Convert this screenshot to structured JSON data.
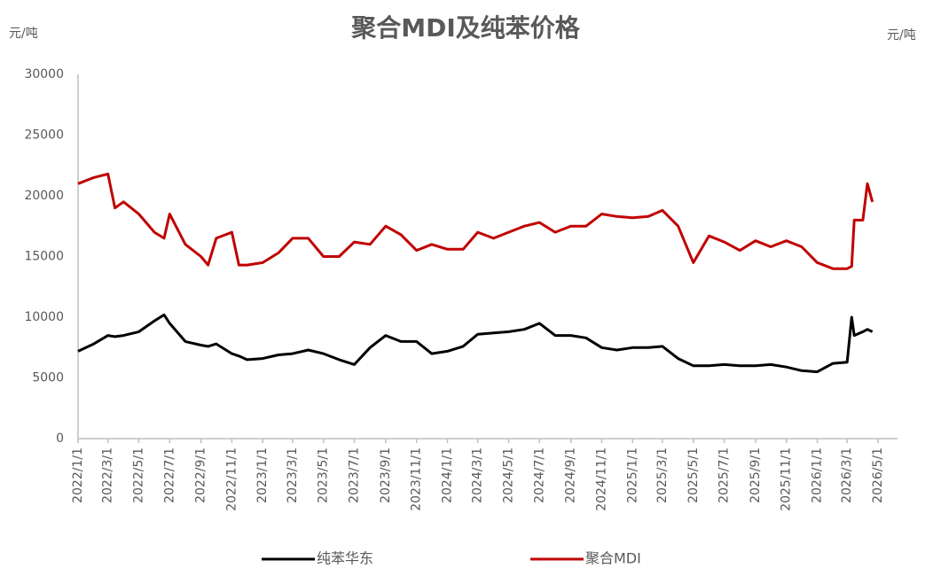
{
  "chart_data": {
    "type": "line",
    "title": "聚合MDI及纯苯价格",
    "ylabel": "元/吨",
    "y2label": "元/吨",
    "x": [
      "2022/1/1",
      "2022/2/1",
      "2022/3/1",
      "2022/3/15",
      "2022/4/1",
      "2022/5/1",
      "2022/6/1",
      "2022/6/20",
      "2022/7/1",
      "2022/8/1",
      "2022/9/1",
      "2022/9/15",
      "2022/10/1",
      "2022/11/1",
      "2022/11/15",
      "2022/12/1",
      "2023/1/1",
      "2023/2/1",
      "2023/3/1",
      "2023/4/1",
      "2023/5/1",
      "2023/6/1",
      "2023/7/1",
      "2023/8/1",
      "2023/9/1",
      "2023/10/1",
      "2023/11/1",
      "2023/12/1",
      "2024/1/1",
      "2024/2/1",
      "2024/3/1",
      "2024/4/1",
      "2024/5/1",
      "2024/6/1",
      "2024/7/1",
      "2024/8/1",
      "2024/9/1",
      "2024/10/1",
      "2024/11/1",
      "2024/12/1",
      "2025/1/1",
      "2025/2/1",
      "2025/3/1",
      "2025/4/1",
      "2025/5/1",
      "2025/6/1",
      "2025/7/1",
      "2025/8/1",
      "2025/9/1",
      "2025/10/1",
      "2025/11/1",
      "2025/12/1",
      "2026/1/1",
      "2026/2/1",
      "2026/3/1",
      "2026/3/10",
      "2026/3/15",
      "2026/4/1",
      "2026/4/10",
      "2026/4/20"
    ],
    "series": [
      {
        "name": "纯苯华东",
        "color": "#000000",
        "values": [
          7200,
          7800,
          8500,
          8400,
          8500,
          8800,
          9700,
          10200,
          9500,
          8000,
          7700,
          7600,
          7800,
          7000,
          6800,
          6500,
          6600,
          6900,
          7000,
          7300,
          7000,
          6500,
          6100,
          7500,
          8500,
          8000,
          8000,
          7000,
          7200,
          7600,
          8600,
          8700,
          8800,
          9000,
          9500,
          8500,
          8500,
          8300,
          7500,
          7300,
          7500,
          7500,
          7600,
          6600,
          6000,
          6000,
          6100,
          6000,
          6000,
          6100,
          5900,
          5600,
          5500,
          6200,
          6300,
          10000,
          8500,
          8800,
          9000,
          8800
        ]
      },
      {
        "name": "聚合MDI",
        "color": "#c00000",
        "values": [
          21000,
          21500,
          21800,
          19000,
          19500,
          18500,
          17000,
          16500,
          18500,
          16000,
          15000,
          14300,
          16500,
          17000,
          14300,
          14300,
          14500,
          15300,
          16500,
          16500,
          15000,
          15000,
          16200,
          16000,
          17500,
          16800,
          15500,
          16000,
          15600,
          15600,
          17000,
          16500,
          17000,
          17500,
          17800,
          17000,
          17500,
          17500,
          18500,
          18300,
          18200,
          18300,
          18800,
          17500,
          14500,
          16700,
          16200,
          15500,
          16300,
          15800,
          16300,
          15800,
          14500,
          14000,
          14000,
          14200,
          18000,
          18000,
          21000,
          19500
        ]
      }
    ],
    "xlim": [
      "2022/1/1",
      "2026/5/1"
    ],
    "xticks": [
      "2022/1/1",
      "2022/3/1",
      "2022/5/1",
      "2022/7/1",
      "2022/9/1",
      "2022/11/1",
      "2023/1/1",
      "2023/3/1",
      "2023/5/1",
      "2023/7/1",
      "2023/9/1",
      "2023/11/1",
      "2024/1/1",
      "2024/3/1",
      "2024/5/1",
      "2024/7/1",
      "2024/9/1",
      "2024/11/1",
      "2025/1/1",
      "2025/3/1",
      "2025/5/1",
      "2025/7/1",
      "2025/9/1",
      "2025/11/1",
      "2026/1/1",
      "2026/3/1",
      "2026/5/1"
    ],
    "ylim": [
      0,
      30000
    ],
    "yticks": [
      0,
      5000,
      10000,
      15000,
      20000,
      25000,
      30000
    ],
    "grid": false
  }
}
